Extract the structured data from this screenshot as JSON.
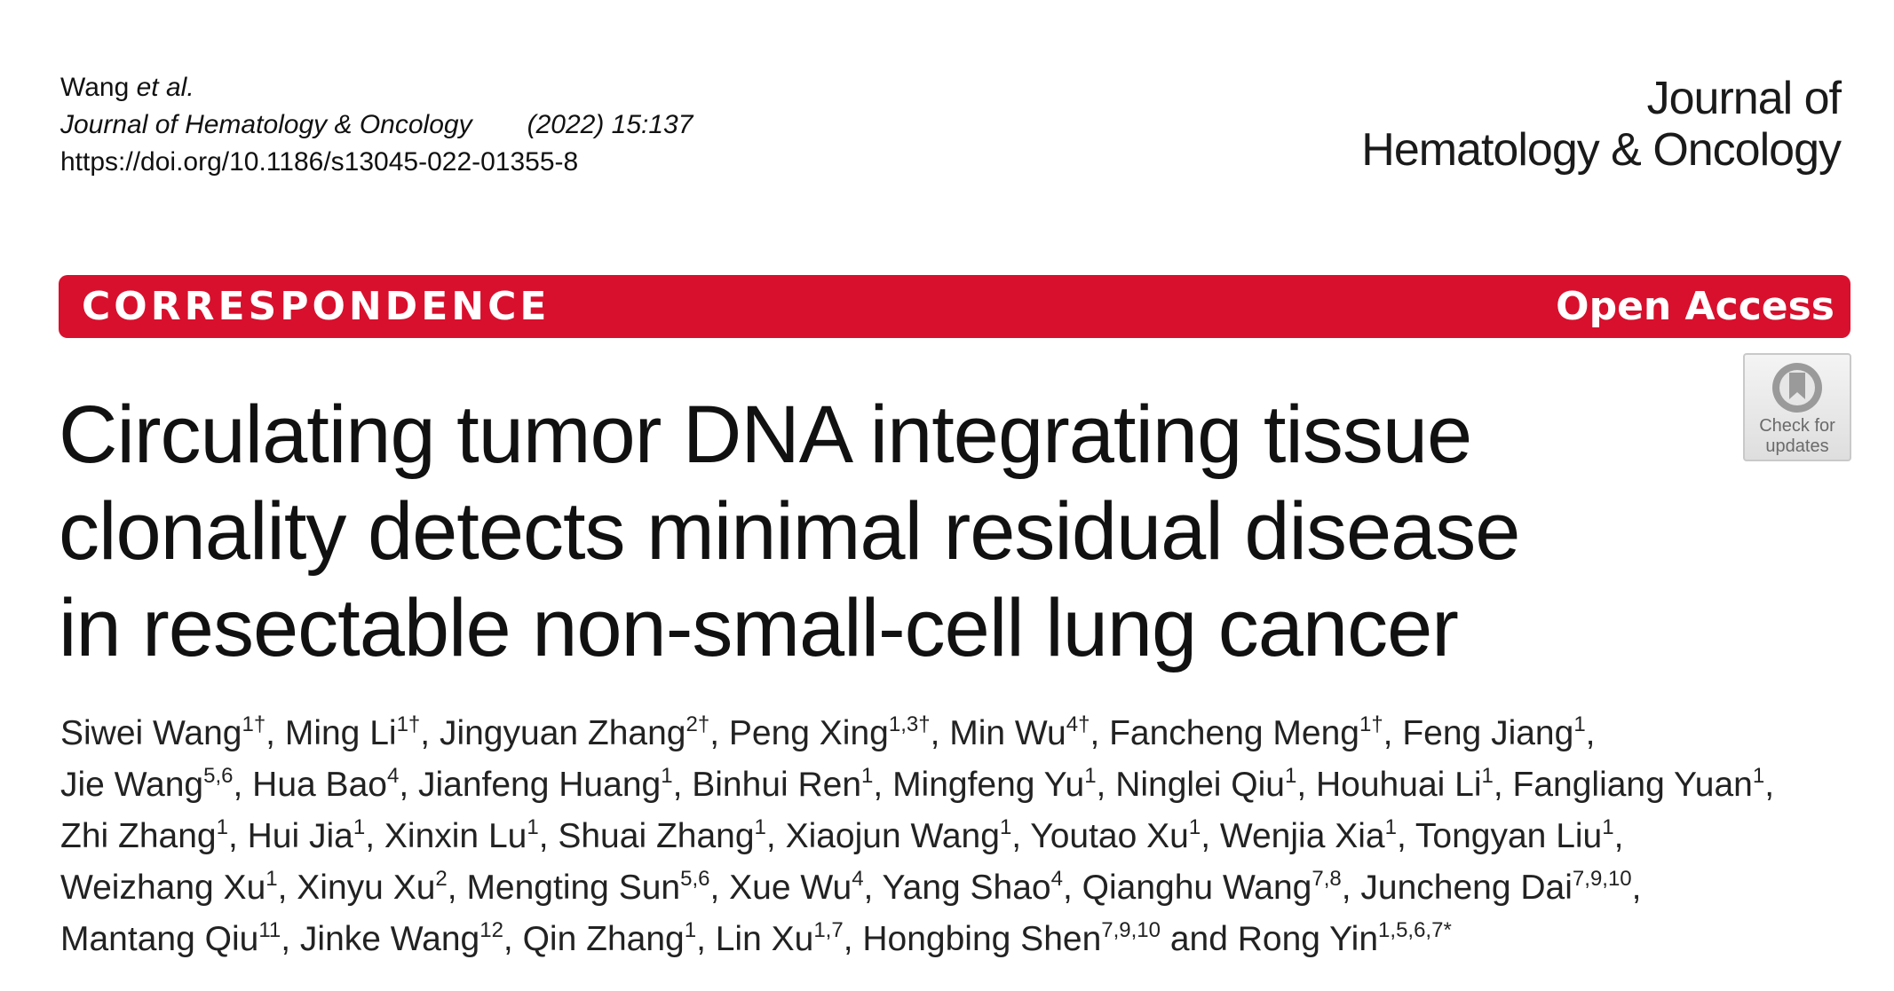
{
  "citation": {
    "author_name": "Wang",
    "author_suffix": "et al.",
    "journal": "Journal of Hematology & Oncology",
    "year_volume": "(2022) 15:137",
    "doi": "https://doi.org/10.1186/s13045-022-01355-8"
  },
  "journal_logo": {
    "line1": "Journal of",
    "line2": "Hematology & Oncology"
  },
  "banner": {
    "type": "CORRESPONDENCE",
    "access": "Open Access",
    "color": "#d8102d"
  },
  "check_updates": {
    "line1": "Check for",
    "line2": "updates",
    "icon": "bookmark-icon"
  },
  "title": {
    "line1": "Circulating tumor DNA integrating tissue",
    "line2": "clonality detects minimal residual disease",
    "line3": "in resectable non-small-cell lung cancer"
  },
  "authors": {
    "lines": [
      [
        {
          "name": "Siwei Wang",
          "sup": "1†"
        },
        {
          "name": "Ming Li",
          "sup": "1†"
        },
        {
          "name": "Jingyuan Zhang",
          "sup": "2†"
        },
        {
          "name": "Peng Xing",
          "sup": "1,3†"
        },
        {
          "name": "Min Wu",
          "sup": "4†"
        },
        {
          "name": "Fancheng Meng",
          "sup": "1†"
        },
        {
          "name": "Feng Jiang",
          "sup": "1"
        }
      ],
      [
        {
          "name": "Jie Wang",
          "sup": "5,6"
        },
        {
          "name": "Hua Bao",
          "sup": "4"
        },
        {
          "name": "Jianfeng Huang",
          "sup": "1"
        },
        {
          "name": "Binhui Ren",
          "sup": "1"
        },
        {
          "name": "Mingfeng Yu",
          "sup": "1"
        },
        {
          "name": "Ninglei Qiu",
          "sup": "1"
        },
        {
          "name": "Houhuai Li",
          "sup": "1"
        },
        {
          "name": "Fangliang Yuan",
          "sup": "1"
        }
      ],
      [
        {
          "name": "Zhi Zhang",
          "sup": "1"
        },
        {
          "name": "Hui Jia",
          "sup": "1"
        },
        {
          "name": "Xinxin Lu",
          "sup": "1"
        },
        {
          "name": "Shuai Zhang",
          "sup": "1"
        },
        {
          "name": "Xiaojun Wang",
          "sup": "1"
        },
        {
          "name": "Youtao Xu",
          "sup": "1"
        },
        {
          "name": "Wenjia Xia",
          "sup": "1"
        },
        {
          "name": "Tongyan Liu",
          "sup": "1"
        }
      ],
      [
        {
          "name": "Weizhang Xu",
          "sup": "1"
        },
        {
          "name": "Xinyu Xu",
          "sup": "2"
        },
        {
          "name": "Mengting Sun",
          "sup": "5,6"
        },
        {
          "name": "Xue Wu",
          "sup": "4"
        },
        {
          "name": "Yang Shao",
          "sup": "4"
        },
        {
          "name": "Qianghu Wang",
          "sup": "7,8"
        },
        {
          "name": "Juncheng Dai",
          "sup": "7,9,10"
        }
      ],
      [
        {
          "name": "Mantang Qiu",
          "sup": "11"
        },
        {
          "name": "Jinke Wang",
          "sup": "12"
        },
        {
          "name": "Qin Zhang",
          "sup": "1"
        },
        {
          "name": "Lin Xu",
          "sup": "1,7"
        },
        {
          "name": "Hongbing Shen",
          "sup": "7,9,10"
        },
        {
          "name": "and Rong Yin",
          "sup": "1,5,6,7*"
        }
      ]
    ]
  }
}
